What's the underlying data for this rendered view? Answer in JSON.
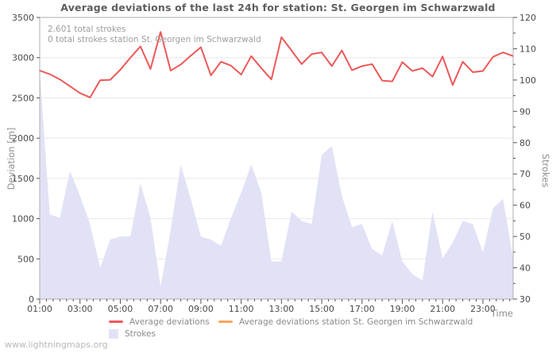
{
  "page": {
    "watermark": "www.lightningmaps.org"
  },
  "chart": {
    "title": "Average deviations of the last 24h for station: St. Georgen im Schwarzwald",
    "annotation_total": "2.601 total strokes",
    "annotation_station": "0 total strokes station St. Georgen im Schwarzwald"
  },
  "chart_data": {
    "type": "line",
    "title": "Average deviations of the last 24h for station: St. Georgen im Schwarzwald",
    "xlabel": "Time",
    "grid": "horizontal-only",
    "legend_position": "bottom",
    "x": [
      "01:00",
      "01:30",
      "02:00",
      "02:30",
      "03:00",
      "03:30",
      "04:00",
      "04:30",
      "05:00",
      "05:30",
      "06:00",
      "06:30",
      "07:00",
      "07:30",
      "08:00",
      "08:30",
      "09:00",
      "09:30",
      "10:00",
      "10:30",
      "11:00",
      "11:30",
      "12:00",
      "12:30",
      "13:00",
      "13:30",
      "14:00",
      "14:30",
      "15:00",
      "15:30",
      "16:00",
      "16:30",
      "17:00",
      "17:30",
      "18:00",
      "18:30",
      "19:00",
      "19:30",
      "20:00",
      "20:30",
      "21:00",
      "21:30",
      "22:00",
      "22:30",
      "23:00",
      "23:30",
      "00:00",
      "00:30"
    ],
    "x_tick_labels": [
      "01:00",
      "03:00",
      "05:00",
      "07:00",
      "09:00",
      "11:00",
      "13:00",
      "15:00",
      "17:00",
      "19:00",
      "21:00",
      "23:00"
    ],
    "left_axis": {
      "label": "Deviation [m]",
      "range": [
        0,
        3500
      ],
      "tick_step": 500,
      "tick_labels": [
        "0",
        "500",
        "1000",
        "1500",
        "2000",
        "2500",
        "3000",
        "3500"
      ]
    },
    "right_axis": {
      "label": "Strokes",
      "range": [
        30,
        120
      ],
      "tick_step": 10,
      "minor_step": 5,
      "tick_labels": [
        "30",
        "40",
        "50",
        "60",
        "70",
        "80",
        "90",
        "100",
        "110",
        "120"
      ]
    },
    "series": [
      {
        "name": "Average deviations",
        "type": "line",
        "axis": "left",
        "color": "#ee5858",
        "values": [
          2840,
          2795,
          2730,
          2645,
          2560,
          2505,
          2720,
          2725,
          2850,
          3000,
          3140,
          2860,
          3320,
          2840,
          2915,
          3025,
          3130,
          2780,
          2950,
          2900,
          2790,
          3020,
          2870,
          2730,
          3255,
          3090,
          2920,
          3045,
          3065,
          2895,
          3090,
          2845,
          2895,
          2920,
          2715,
          2705,
          2945,
          2835,
          2870,
          2765,
          3015,
          2660,
          2950,
          2820,
          2835,
          3010,
          3065,
          3020
        ]
      },
      {
        "name": "Average deviations station St. Georgen im Schwarzwald",
        "type": "line",
        "axis": "left",
        "color": "#f9a55e",
        "values": []
      },
      {
        "name": "Strokes",
        "type": "area",
        "axis": "right",
        "color": "#e2e2f6",
        "values": [
          103,
          57,
          56,
          71,
          63,
          54,
          40,
          49,
          50,
          50,
          67,
          56,
          34,
          52,
          73,
          62,
          50,
          49,
          47,
          56,
          64,
          73,
          64,
          42,
          42,
          58,
          55,
          54,
          76,
          79,
          63,
          53,
          54,
          46,
          44,
          55,
          42,
          38,
          36,
          58,
          43,
          48,
          55,
          54,
          45,
          59,
          62,
          43
        ]
      }
    ]
  }
}
